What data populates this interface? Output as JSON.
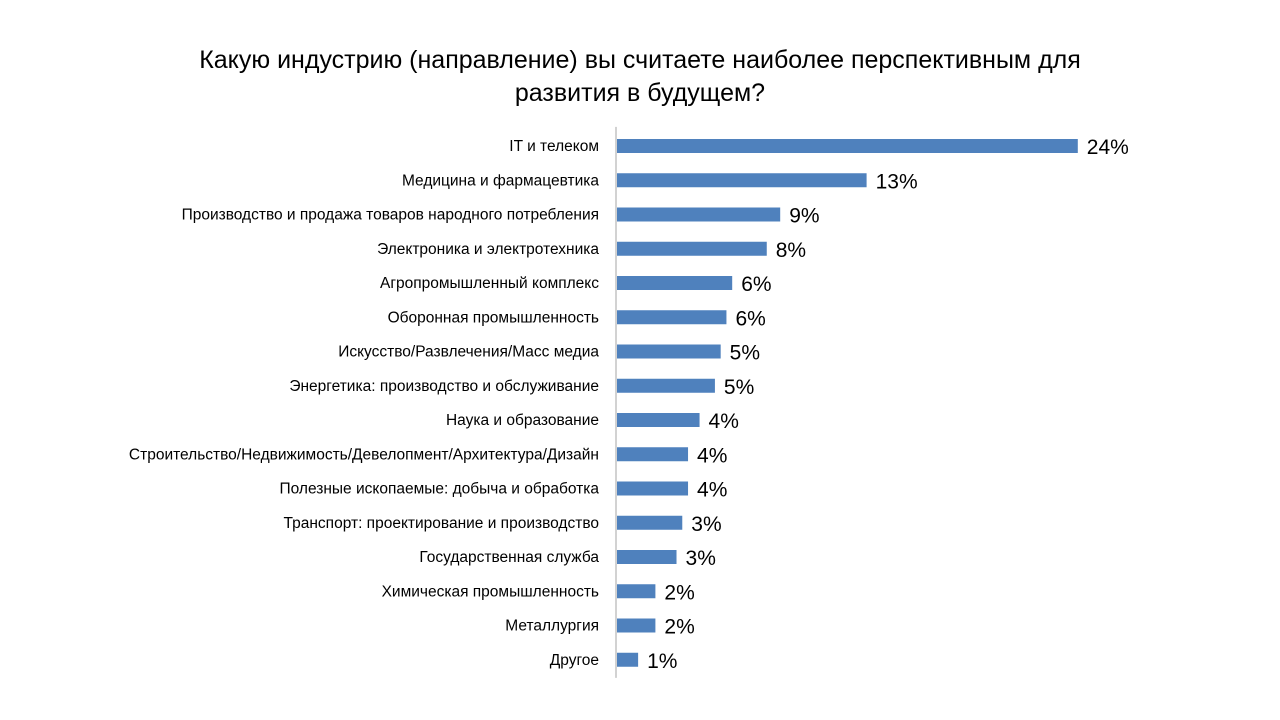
{
  "chart_data": {
    "type": "bar",
    "orientation": "horizontal",
    "title_lines": [
      "Какую индустрию (направление) вы считаете наиболее перспективным для",
      "развития в будущем?"
    ],
    "categories": [
      "IT и телеком",
      "Медицина и фармацевтика",
      "Производство и продажа товаров народного потребления",
      "Электроника и электротехника",
      "Агропромышленный комплекс",
      "Оборонная промышленность",
      "Искусство/Развлечения/Масс медиа",
      "Энергетика: производство и обслуживание",
      "Наука и образование",
      "Строительство/Недвижимость/Девелопмент/Архитектура/Дизайн",
      "Полезные ископаемые: добыча и обработка",
      "Транспорт: проектирование и производство",
      "Государственная служба",
      "Химическая промышленность",
      "Металлургия",
      "Другое"
    ],
    "values": [
      24.0,
      13.0,
      8.5,
      7.8,
      6.0,
      5.7,
      5.4,
      5.1,
      4.3,
      3.7,
      3.7,
      3.4,
      3.1,
      2.0,
      2.0,
      1.1
    ],
    "value_labels": [
      "24%",
      "13%",
      "9%",
      "8%",
      "6%",
      "6%",
      "5%",
      "5%",
      "4%",
      "4%",
      "4%",
      "3%",
      "3%",
      "2%",
      "2%",
      "1%"
    ],
    "unit": "%",
    "bar_color": "#4F81BD",
    "axis_color": "#A6A6A6",
    "grid": false,
    "legend": "none"
  }
}
